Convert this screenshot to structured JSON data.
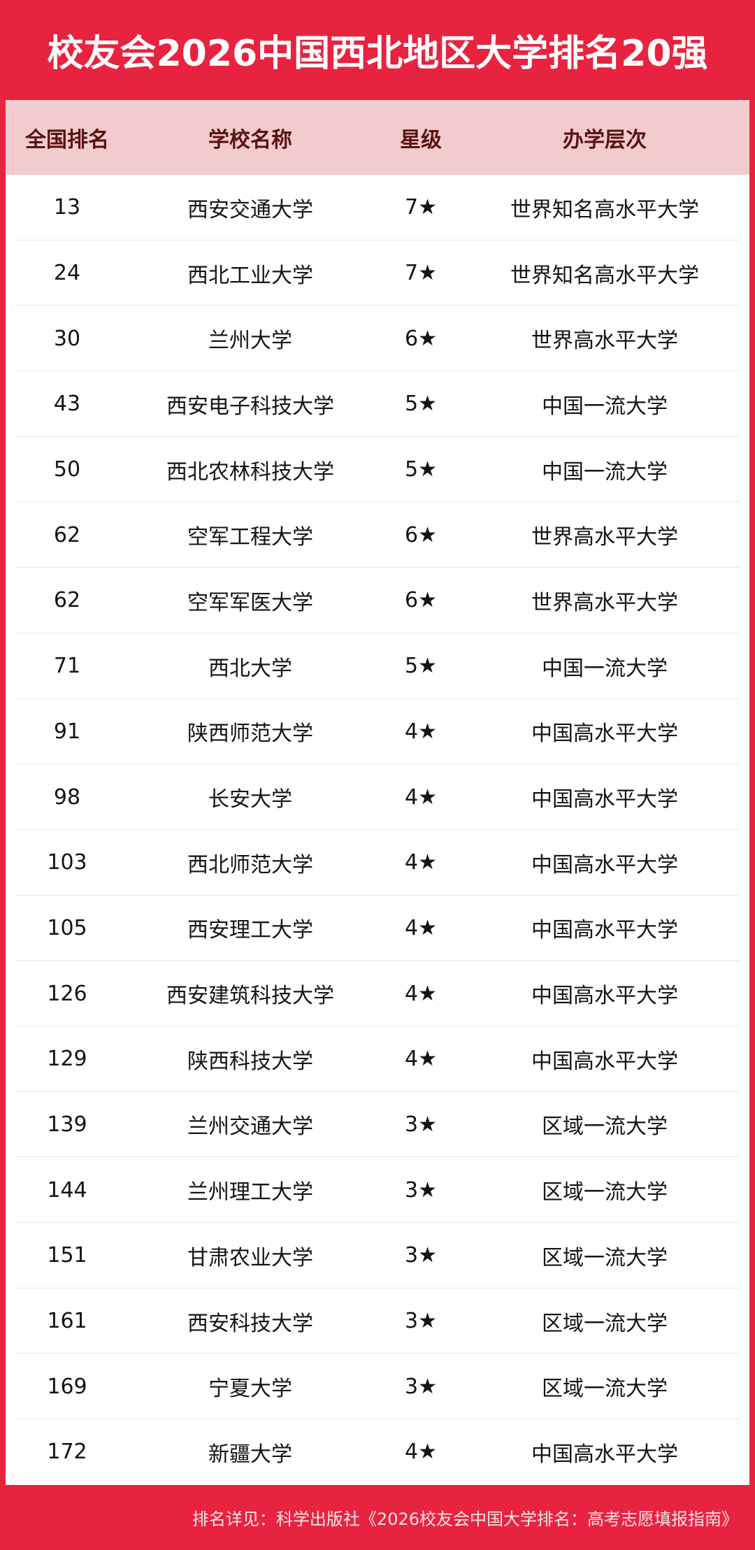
{
  "title": "校友会2026中国西北地区大学排名20强",
  "colors": {
    "brand_red": "#e8233f",
    "header_bg": "#f2cccc",
    "header_text": "#5a1212"
  },
  "columns": [
    "全国排名",
    "学校名称",
    "星级",
    "办学层次"
  ],
  "rows": [
    {
      "rank": "13",
      "name": "西安交通大学",
      "stars": "7★",
      "level": "世界知名高水平大学"
    },
    {
      "rank": "24",
      "name": "西北工业大学",
      "stars": "7★",
      "level": "世界知名高水平大学"
    },
    {
      "rank": "30",
      "name": "兰州大学",
      "stars": "6★",
      "level": "世界高水平大学"
    },
    {
      "rank": "43",
      "name": "西安电子科技大学",
      "stars": "5★",
      "level": "中国一流大学"
    },
    {
      "rank": "50",
      "name": "西北农林科技大学",
      "stars": "5★",
      "level": "中国一流大学"
    },
    {
      "rank": "62",
      "name": "空军工程大学",
      "stars": "6★",
      "level": "世界高水平大学"
    },
    {
      "rank": "62",
      "name": "空军军医大学",
      "stars": "6★",
      "level": "世界高水平大学"
    },
    {
      "rank": "71",
      "name": "西北大学",
      "stars": "5★",
      "level": "中国一流大学"
    },
    {
      "rank": "91",
      "name": "陕西师范大学",
      "stars": "4★",
      "level": "中国高水平大学"
    },
    {
      "rank": "98",
      "name": "长安大学",
      "stars": "4★",
      "level": "中国高水平大学"
    },
    {
      "rank": "103",
      "name": "西北师范大学",
      "stars": "4★",
      "level": "中国高水平大学"
    },
    {
      "rank": "105",
      "name": "西安理工大学",
      "stars": "4★",
      "level": "中国高水平大学"
    },
    {
      "rank": "126",
      "name": "西安建筑科技大学",
      "stars": "4★",
      "level": "中国高水平大学"
    },
    {
      "rank": "129",
      "name": "陕西科技大学",
      "stars": "4★",
      "level": "中国高水平大学"
    },
    {
      "rank": "139",
      "name": "兰州交通大学",
      "stars": "3★",
      "level": "区域一流大学"
    },
    {
      "rank": "144",
      "name": "兰州理工大学",
      "stars": "3★",
      "level": "区域一流大学"
    },
    {
      "rank": "151",
      "name": "甘肃农业大学",
      "stars": "3★",
      "level": "区域一流大学"
    },
    {
      "rank": "161",
      "name": "西安科技大学",
      "stars": "3★",
      "level": "区域一流大学"
    },
    {
      "rank": "169",
      "name": "宁夏大学",
      "stars": "3★",
      "level": "区域一流大学"
    },
    {
      "rank": "172",
      "name": "新疆大学",
      "stars": "4★",
      "level": "中国高水平大学"
    }
  ],
  "footer": "排名详见：科学出版社《2026校友会中国大学排名：高考志愿填报指南》"
}
